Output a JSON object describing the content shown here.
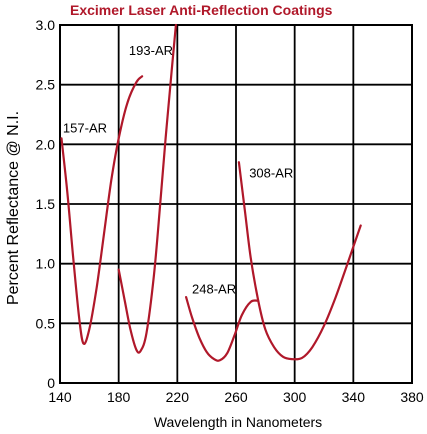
{
  "chart_data": {
    "type": "line",
    "title": "Excimer Laser Anti-Reflection Coatings",
    "xlabel": "Wavelength in Nanometers",
    "ylabel": "Percent Reflectance @ N.I.",
    "xlim": [
      140,
      380
    ],
    "ylim": [
      0,
      3.0
    ],
    "xticks": [
      "140",
      "180",
      "220",
      "260",
      "300",
      "340",
      "380"
    ],
    "yticks": [
      "0",
      "0.5",
      "1.0",
      "1.5",
      "2.0",
      "2.5",
      "3.0"
    ],
    "grid": true,
    "line_color": "#b0182a",
    "series": [
      {
        "name": "157-AR",
        "points": [
          [
            141,
            2.05
          ],
          [
            145,
            1.6
          ],
          [
            149,
            1.05
          ],
          [
            153,
            0.55
          ],
          [
            156,
            0.33
          ],
          [
            160,
            0.45
          ],
          [
            165,
            0.8
          ],
          [
            170,
            1.25
          ],
          [
            175,
            1.7
          ],
          [
            180,
            2.05
          ],
          [
            186,
            2.35
          ],
          [
            192,
            2.52
          ],
          [
            196,
            2.57
          ]
        ]
      },
      {
        "name": "193-AR",
        "points": [
          [
            180,
            0.95
          ],
          [
            184,
            0.7
          ],
          [
            188,
            0.45
          ],
          [
            192,
            0.28
          ],
          [
            195,
            0.27
          ],
          [
            199,
            0.42
          ],
          [
            204,
            0.9
          ],
          [
            208,
            1.45
          ],
          [
            212,
            2.05
          ],
          [
            216,
            2.6
          ],
          [
            219,
            3.0
          ]
        ]
      },
      {
        "name": "248-AR",
        "points": [
          [
            226,
            0.72
          ],
          [
            230,
            0.55
          ],
          [
            235,
            0.38
          ],
          [
            240,
            0.26
          ],
          [
            245,
            0.2
          ],
          [
            249,
            0.19
          ],
          [
            254,
            0.25
          ],
          [
            259,
            0.4
          ],
          [
            264,
            0.57
          ],
          [
            270,
            0.68
          ],
          [
            275,
            0.69
          ]
        ]
      },
      {
        "name": "308-AR",
        "points": [
          [
            262,
            1.85
          ],
          [
            266,
            1.45
          ],
          [
            270,
            1.05
          ],
          [
            275,
            0.7
          ],
          [
            280,
            0.45
          ],
          [
            286,
            0.3
          ],
          [
            292,
            0.22
          ],
          [
            298,
            0.2
          ],
          [
            305,
            0.21
          ],
          [
            312,
            0.3
          ],
          [
            320,
            0.48
          ],
          [
            328,
            0.72
          ],
          [
            336,
            1.0
          ],
          [
            345,
            1.32
          ]
        ]
      }
    ]
  }
}
